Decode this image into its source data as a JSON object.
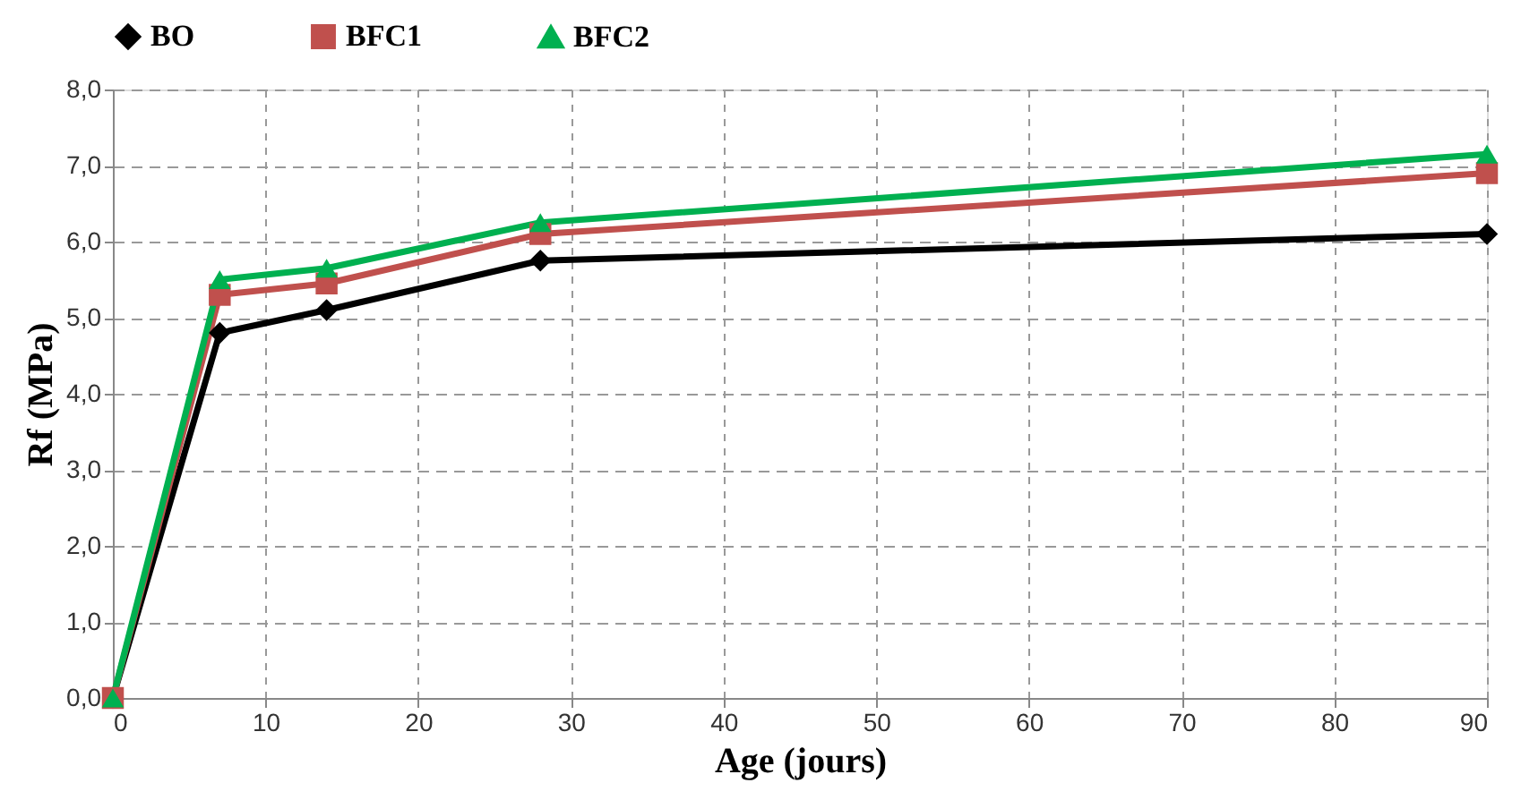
{
  "chart_data": {
    "type": "line",
    "xlabel": "Age (jours)",
    "ylabel": "Rf (MPa)",
    "x": [
      0,
      7,
      14,
      28,
      90
    ],
    "series": [
      {
        "name": "BO",
        "color": "#000000",
        "marker": "diamond",
        "values": [
          0,
          4.8,
          5.1,
          5.75,
          6.1
        ]
      },
      {
        "name": "BFC1",
        "color": "#c0504d",
        "marker": "square",
        "values": [
          0,
          5.3,
          5.45,
          6.1,
          6.9
        ]
      },
      {
        "name": "BFC2",
        "color": "#00b050",
        "marker": "triangle",
        "values": [
          0,
          5.5,
          5.65,
          6.25,
          7.15
        ]
      }
    ],
    "xlim": [
      0,
      90
    ],
    "xticks": [
      0,
      10,
      20,
      30,
      40,
      50,
      60,
      70,
      80,
      90
    ],
    "ylim": [
      0,
      8
    ],
    "yticks": [
      {
        "value": 0,
        "label": "0,0"
      },
      {
        "value": 1,
        "label": "1,0"
      },
      {
        "value": 2,
        "label": "2,0"
      },
      {
        "value": 3,
        "label": "3,0"
      },
      {
        "value": 4,
        "label": "4,0"
      },
      {
        "value": 5,
        "label": "5,0"
      },
      {
        "value": 6,
        "label": "6,0"
      },
      {
        "value": 7,
        "label": "7,0"
      },
      {
        "value": 8,
        "label": "8,0"
      }
    ],
    "grid": true,
    "legend": "top",
    "line_style": "solid"
  }
}
